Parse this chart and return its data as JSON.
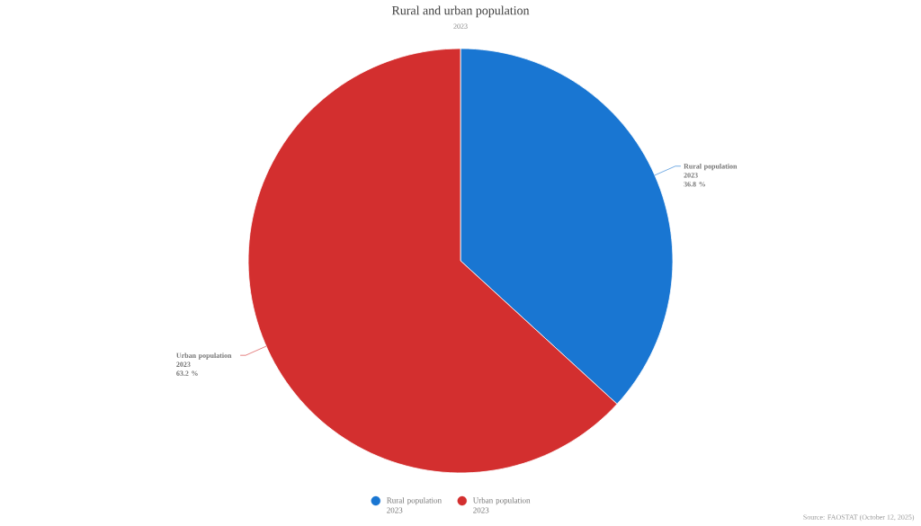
{
  "chart_data": {
    "type": "pie",
    "title": "Rural and urban population",
    "subtitle": "2023",
    "categories": [
      "Rural population 2023",
      "Urban population 2023"
    ],
    "values": [
      36.8,
      63.2
    ],
    "value_labels": [
      "36.8 %",
      "63.2 %"
    ],
    "colors": [
      "#1976d2",
      "#d32f2f"
    ],
    "legend": "bottom",
    "annotations": [
      "Source: FAOSTAT (October 12, 2025)"
    ]
  }
}
